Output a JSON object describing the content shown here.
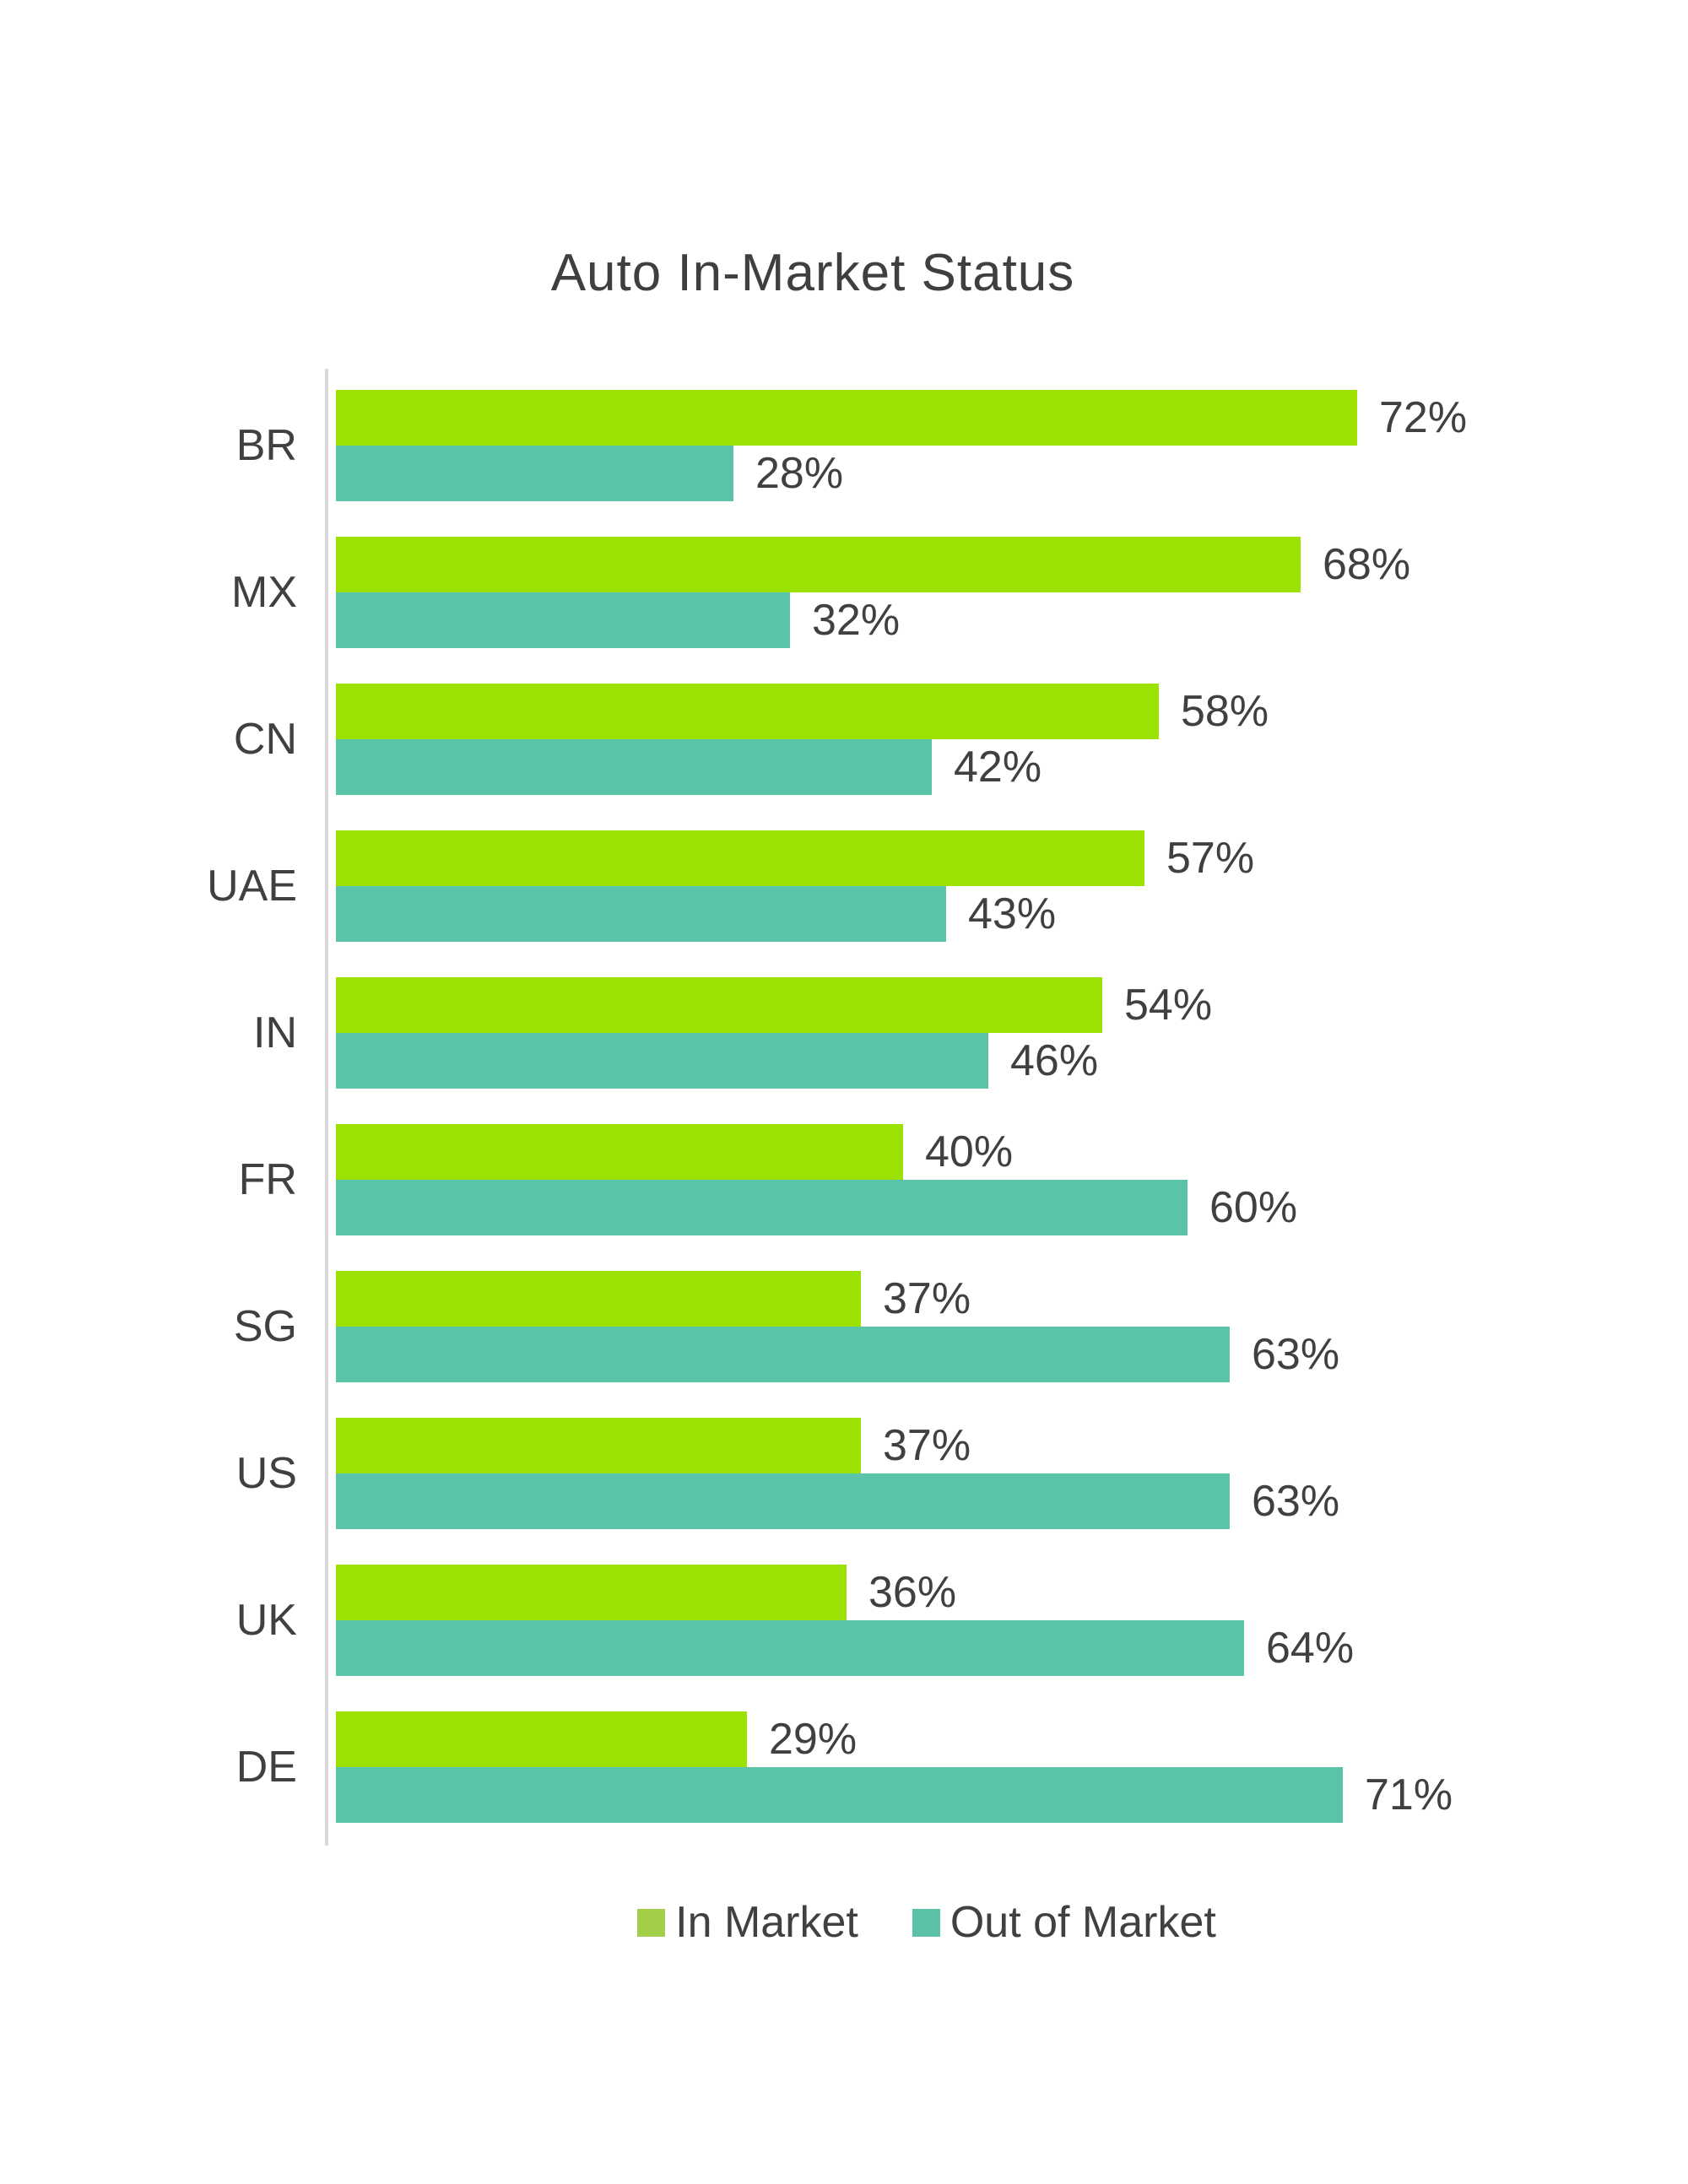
{
  "title": "Auto In-Market Status",
  "chart_data": {
    "type": "bar",
    "orientation": "horizontal",
    "title": "Auto In-Market Status",
    "categories": [
      "BR",
      "MX",
      "CN",
      "UAE",
      "IN",
      "FR",
      "SG",
      "US",
      "UK",
      "DE"
    ],
    "series": [
      {
        "name": "In Market",
        "color": "#9be203",
        "values": [
          72,
          68,
          58,
          57,
          54,
          40,
          37,
          37,
          36,
          29
        ]
      },
      {
        "name": "Out of Market",
        "color": "#5bc3a8",
        "values": [
          28,
          32,
          42,
          43,
          46,
          60,
          63,
          63,
          64,
          71
        ]
      }
    ],
    "value_suffix": "%",
    "xlim": [
      0,
      94
    ],
    "grid": false,
    "legend_position": "bottom",
    "legend_marker_colors": [
      "#a2ce4a",
      "#5bc2a7"
    ],
    "axis_line_color": "#d9d9d9",
    "label_color": "#404040"
  }
}
